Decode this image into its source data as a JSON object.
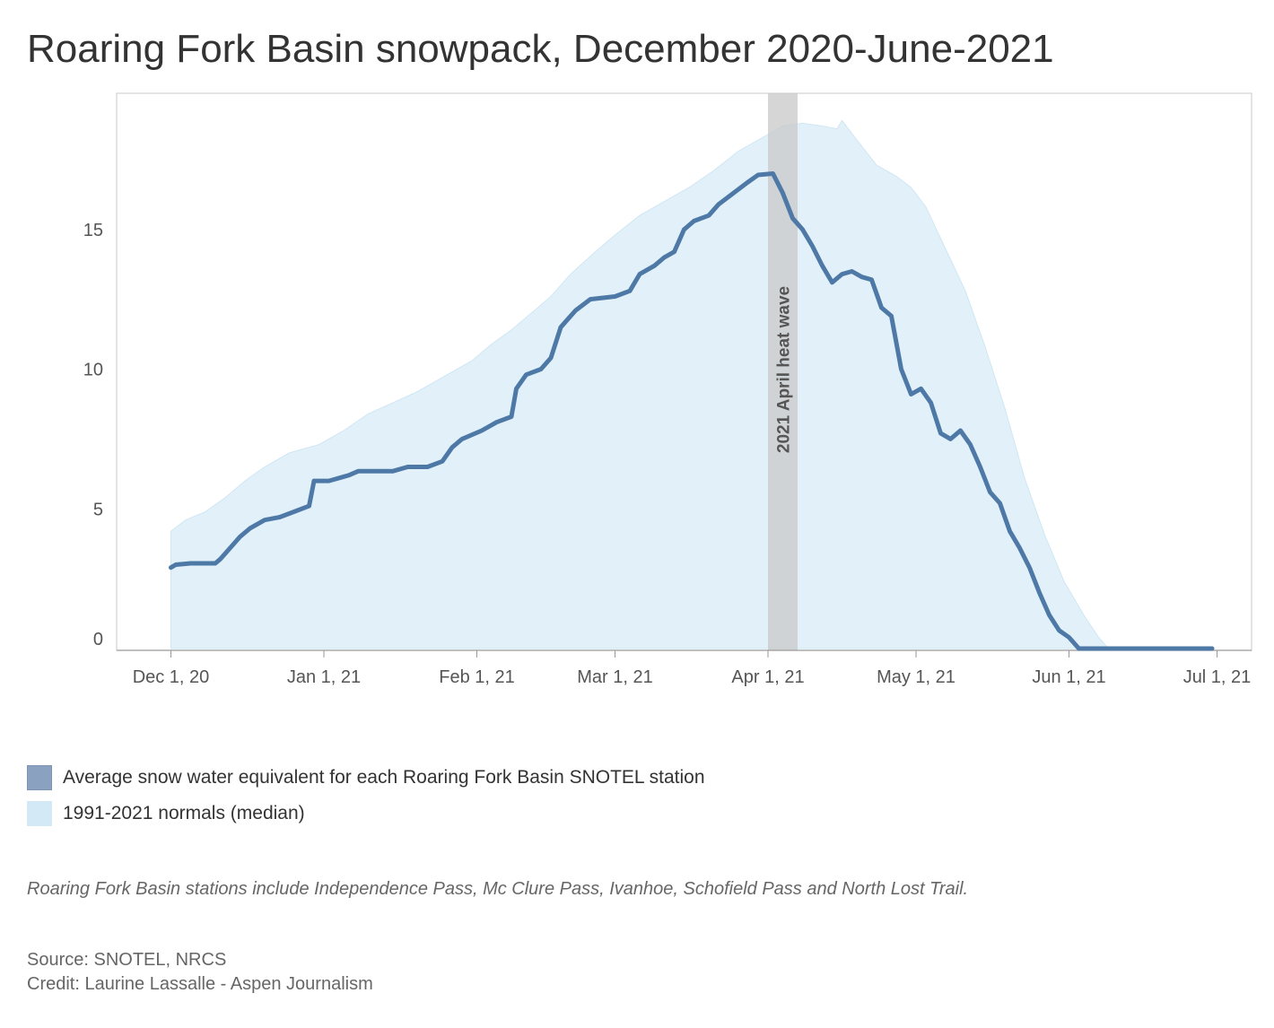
{
  "title": "Roaring Fork Basin snowpack, December 2020-June-2021",
  "legend": {
    "line_label": "Average snow water equivalent for each Roaring Fork Basin SNOTEL station",
    "area_label": "1991-2021 normals (median)"
  },
  "note": "Roaring Fork Basin stations include Independence Pass, Mc Clure Pass, Ivanhoe, Schofield Pass and North Lost Trail.",
  "source": "Source: SNOTEL, NRCS",
  "credit": "Credit: Laurine Lassalle - Aspen Journalism",
  "colors": {
    "line": "#4e79a7",
    "area": "#e2f1f9",
    "area_edge": "#cfe6f3",
    "band": "#c8c8c8",
    "frame": "#c8c8c8",
    "tick_text": "#555555"
  },
  "chart_data": {
    "type": "area",
    "xlabel": "",
    "ylabel": "",
    "ylim": [
      0,
      19.5
    ],
    "xlim": [
      "2020-11-20",
      "2021-07-08"
    ],
    "x_ticks": [
      {
        "date": "2020-12-01",
        "label": "Dec 1, 20"
      },
      {
        "date": "2021-01-01",
        "label": "Jan 1, 21"
      },
      {
        "date": "2021-02-01",
        "label": "Feb 1, 21"
      },
      {
        "date": "2021-03-01",
        "label": "Mar 1, 21"
      },
      {
        "date": "2021-04-01",
        "label": "Apr 1, 21"
      },
      {
        "date": "2021-05-01",
        "label": "May 1, 21"
      },
      {
        "date": "2021-06-01",
        "label": "Jun 1, 21"
      },
      {
        "date": "2021-07-01",
        "label": "Jul 1, 21"
      }
    ],
    "y_ticks": [
      0,
      5,
      10,
      15
    ],
    "annotation": {
      "label": "2021 April heat wave",
      "start": "2021-04-01",
      "end": "2021-04-07"
    },
    "series": [
      {
        "name": "Average snow water equivalent for each Roaring Fork Basin SNOTEL station",
        "kind": "line",
        "points": [
          [
            "2020-12-01",
            2.9
          ],
          [
            "2020-12-02",
            3.0
          ],
          [
            "2020-12-05",
            3.05
          ],
          [
            "2020-12-10",
            3.05
          ],
          [
            "2020-12-11",
            3.2
          ],
          [
            "2020-12-13",
            3.6
          ],
          [
            "2020-12-15",
            4.0
          ],
          [
            "2020-12-17",
            4.3
          ],
          [
            "2020-12-20",
            4.6
          ],
          [
            "2020-12-23",
            4.7
          ],
          [
            "2020-12-26",
            4.9
          ],
          [
            "2020-12-29",
            5.1
          ],
          [
            "2020-12-30",
            6.0
          ],
          [
            "2021-01-02",
            6.0
          ],
          [
            "2021-01-06",
            6.2
          ],
          [
            "2021-01-08",
            6.35
          ],
          [
            "2021-01-15",
            6.35
          ],
          [
            "2021-01-18",
            6.5
          ],
          [
            "2021-01-22",
            6.5
          ],
          [
            "2021-01-25",
            6.7
          ],
          [
            "2021-01-27",
            7.2
          ],
          [
            "2021-01-29",
            7.5
          ],
          [
            "2021-02-02",
            7.8
          ],
          [
            "2021-02-05",
            8.1
          ],
          [
            "2021-02-08",
            8.3
          ],
          [
            "2021-02-09",
            9.3
          ],
          [
            "2021-02-11",
            9.8
          ],
          [
            "2021-02-14",
            10.0
          ],
          [
            "2021-02-16",
            10.4
          ],
          [
            "2021-02-18",
            11.5
          ],
          [
            "2021-02-21",
            12.1
          ],
          [
            "2021-02-24",
            12.5
          ],
          [
            "2021-03-01",
            12.6
          ],
          [
            "2021-03-04",
            12.8
          ],
          [
            "2021-03-06",
            13.4
          ],
          [
            "2021-03-09",
            13.7
          ],
          [
            "2021-03-11",
            14.0
          ],
          [
            "2021-03-13",
            14.2
          ],
          [
            "2021-03-15",
            15.0
          ],
          [
            "2021-03-17",
            15.3
          ],
          [
            "2021-03-20",
            15.5
          ],
          [
            "2021-03-22",
            15.9
          ],
          [
            "2021-03-25",
            16.3
          ],
          [
            "2021-03-28",
            16.7
          ],
          [
            "2021-03-30",
            16.95
          ],
          [
            "2021-04-02",
            17.0
          ],
          [
            "2021-04-04",
            16.3
          ],
          [
            "2021-04-06",
            15.4
          ],
          [
            "2021-04-08",
            15.0
          ],
          [
            "2021-04-10",
            14.4
          ],
          [
            "2021-04-12",
            13.7
          ],
          [
            "2021-04-14",
            13.1
          ],
          [
            "2021-04-16",
            13.4
          ],
          [
            "2021-04-18",
            13.5
          ],
          [
            "2021-04-20",
            13.3
          ],
          [
            "2021-04-22",
            13.2
          ],
          [
            "2021-04-24",
            12.2
          ],
          [
            "2021-04-26",
            11.9
          ],
          [
            "2021-04-28",
            10.0
          ],
          [
            "2021-04-30",
            9.1
          ],
          [
            "2021-05-02",
            9.3
          ],
          [
            "2021-05-04",
            8.8
          ],
          [
            "2021-05-06",
            7.7
          ],
          [
            "2021-05-08",
            7.5
          ],
          [
            "2021-05-10",
            7.8
          ],
          [
            "2021-05-12",
            7.3
          ],
          [
            "2021-05-14",
            6.5
          ],
          [
            "2021-05-16",
            5.6
          ],
          [
            "2021-05-18",
            5.2
          ],
          [
            "2021-05-20",
            4.2
          ],
          [
            "2021-05-22",
            3.6
          ],
          [
            "2021-05-24",
            2.9
          ],
          [
            "2021-05-26",
            2.0
          ],
          [
            "2021-05-28",
            1.2
          ],
          [
            "2021-05-30",
            0.65
          ],
          [
            "2021-06-01",
            0.4
          ],
          [
            "2021-06-03",
            0.0
          ],
          [
            "2021-06-10",
            0.0
          ],
          [
            "2021-06-20",
            0.0
          ],
          [
            "2021-06-30",
            0.0
          ]
        ]
      },
      {
        "name": "1991-2021 normals (median)",
        "kind": "area",
        "points": [
          [
            "2020-12-01",
            4.2
          ],
          [
            "2020-12-04",
            4.6
          ],
          [
            "2020-12-08",
            4.9
          ],
          [
            "2020-12-12",
            5.4
          ],
          [
            "2020-12-16",
            6.0
          ],
          [
            "2020-12-20",
            6.5
          ],
          [
            "2020-12-25",
            7.0
          ],
          [
            "2020-12-31",
            7.3
          ],
          [
            "2021-01-05",
            7.8
          ],
          [
            "2021-01-10",
            8.4
          ],
          [
            "2021-01-15",
            8.8
          ],
          [
            "2021-01-20",
            9.2
          ],
          [
            "2021-01-25",
            9.7
          ],
          [
            "2021-01-31",
            10.3
          ],
          [
            "2021-02-04",
            10.9
          ],
          [
            "2021-02-08",
            11.4
          ],
          [
            "2021-02-12",
            12.0
          ],
          [
            "2021-02-16",
            12.6
          ],
          [
            "2021-02-20",
            13.4
          ],
          [
            "2021-02-25",
            14.2
          ],
          [
            "2021-03-01",
            14.8
          ],
          [
            "2021-03-06",
            15.5
          ],
          [
            "2021-03-11",
            16.0
          ],
          [
            "2021-03-16",
            16.5
          ],
          [
            "2021-03-21",
            17.1
          ],
          [
            "2021-03-26",
            17.8
          ],
          [
            "2021-03-31",
            18.3
          ],
          [
            "2021-04-04",
            18.7
          ],
          [
            "2021-04-08",
            18.8
          ],
          [
            "2021-04-12",
            18.7
          ],
          [
            "2021-04-15",
            18.6
          ],
          [
            "2021-04-16",
            18.9
          ],
          [
            "2021-04-19",
            18.2
          ],
          [
            "2021-04-23",
            17.3
          ],
          [
            "2021-04-27",
            16.9
          ],
          [
            "2021-04-30",
            16.5
          ],
          [
            "2021-05-03",
            15.8
          ],
          [
            "2021-05-07",
            14.3
          ],
          [
            "2021-05-11",
            12.8
          ],
          [
            "2021-05-15",
            10.8
          ],
          [
            "2021-05-19",
            8.6
          ],
          [
            "2021-05-23",
            6.1
          ],
          [
            "2021-05-27",
            4.1
          ],
          [
            "2021-05-31",
            2.4
          ],
          [
            "2021-06-04",
            1.2
          ],
          [
            "2021-06-07",
            0.4
          ],
          [
            "2021-06-09",
            0.0
          ],
          [
            "2021-06-30",
            0.0
          ]
        ]
      }
    ]
  }
}
